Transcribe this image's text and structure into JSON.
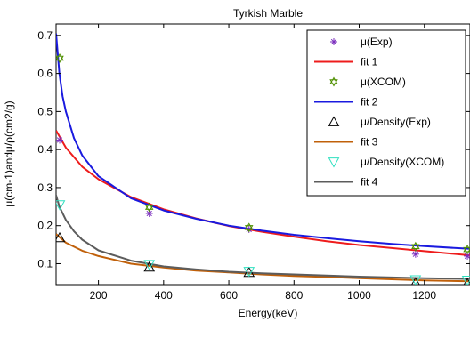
{
  "chart_data": {
    "type": "line",
    "title": "Tyrkish Marble",
    "xlabel": "Energy(keV)",
    "ylabel": "μ(cm-1)andμ/ρ(cm2/g)",
    "xlim": [
      70,
      1340
    ],
    "ylim": [
      0.045,
      0.73
    ],
    "xticks": [
      200,
      400,
      600,
      800,
      1000,
      1200
    ],
    "yticks": [
      0.1,
      0.2,
      0.3,
      0.4,
      0.5,
      0.6,
      0.7
    ],
    "ytick_labels": [
      "0.1",
      "0.2",
      "0.3",
      "0.4",
      "0.5",
      "0.6",
      "0.7"
    ],
    "grid": false,
    "legend_position": "top-right",
    "series": [
      {
        "name": "μ(Exp)",
        "kind": "marker",
        "marker": "asterisk",
        "color": "#7B2FBE",
        "points": [
          [
            81,
            0.425
          ],
          [
            356,
            0.232
          ],
          [
            662,
            0.19
          ],
          [
            1173,
            0.125
          ],
          [
            1332,
            0.12
          ]
        ]
      },
      {
        "name": "fit 1",
        "kind": "line",
        "color": "#ee1c1c",
        "points": [
          [
            70,
            0.45
          ],
          [
            100,
            0.405
          ],
          [
            150,
            0.355
          ],
          [
            200,
            0.322
          ],
          [
            300,
            0.275
          ],
          [
            400,
            0.243
          ],
          [
            500,
            0.219
          ],
          [
            600,
            0.199
          ],
          [
            700,
            0.184
          ],
          [
            800,
            0.171
          ],
          [
            900,
            0.159
          ],
          [
            1000,
            0.149
          ],
          [
            1100,
            0.141
          ],
          [
            1200,
            0.133
          ],
          [
            1340,
            0.122
          ]
        ]
      },
      {
        "name": "μ(XCOM)",
        "kind": "marker",
        "marker": "hexagram",
        "color": "#4f8f00",
        "points": [
          [
            81,
            0.64
          ],
          [
            356,
            0.248
          ],
          [
            662,
            0.195
          ],
          [
            1173,
            0.145
          ],
          [
            1332,
            0.137
          ]
        ]
      },
      {
        "name": "fit 2",
        "kind": "line",
        "color": "#1a1adf",
        "points": [
          [
            70,
            0.705
          ],
          [
            80,
            0.6
          ],
          [
            90,
            0.54
          ],
          [
            100,
            0.5
          ],
          [
            125,
            0.43
          ],
          [
            150,
            0.385
          ],
          [
            200,
            0.33
          ],
          [
            300,
            0.272
          ],
          [
            400,
            0.24
          ],
          [
            500,
            0.218
          ],
          [
            600,
            0.2
          ],
          [
            700,
            0.187
          ],
          [
            800,
            0.176
          ],
          [
            900,
            0.167
          ],
          [
            1000,
            0.159
          ],
          [
            1100,
            0.152
          ],
          [
            1200,
            0.146
          ],
          [
            1340,
            0.139
          ]
        ]
      },
      {
        "name": "μ/Density(Exp)",
        "kind": "marker",
        "marker": "triangle-up",
        "color": "#000000",
        "points": [
          [
            81,
            0.168
          ],
          [
            356,
            0.091
          ],
          [
            662,
            0.077
          ],
          [
            1173,
            0.05
          ],
          [
            1332,
            0.048
          ]
        ]
      },
      {
        "name": "fit 3",
        "kind": "line",
        "color": "#c0600a",
        "points": [
          [
            70,
            0.178
          ],
          [
            100,
            0.155
          ],
          [
            150,
            0.134
          ],
          [
            200,
            0.12
          ],
          [
            300,
            0.1
          ],
          [
            400,
            0.09
          ],
          [
            500,
            0.082
          ],
          [
            600,
            0.077
          ],
          [
            700,
            0.072
          ],
          [
            800,
            0.068
          ],
          [
            900,
            0.065
          ],
          [
            1000,
            0.062
          ],
          [
            1100,
            0.059
          ],
          [
            1200,
            0.056
          ],
          [
            1340,
            0.054
          ]
        ]
      },
      {
        "name": "μ/Density(XCOM)",
        "kind": "marker",
        "marker": "triangle-down",
        "color": "#30e0c0",
        "points": [
          [
            81,
            0.255
          ],
          [
            356,
            0.098
          ],
          [
            662,
            0.08
          ],
          [
            1173,
            0.058
          ],
          [
            1332,
            0.057
          ]
        ]
      },
      {
        "name": "fit 4",
        "kind": "line",
        "color": "#5c5c5c",
        "points": [
          [
            70,
            0.28
          ],
          [
            80,
            0.25
          ],
          [
            100,
            0.215
          ],
          [
            125,
            0.185
          ],
          [
            150,
            0.163
          ],
          [
            200,
            0.135
          ],
          [
            300,
            0.108
          ],
          [
            400,
            0.093
          ],
          [
            500,
            0.085
          ],
          [
            600,
            0.079
          ],
          [
            700,
            0.075
          ],
          [
            800,
            0.072
          ],
          [
            900,
            0.069
          ],
          [
            1000,
            0.066
          ],
          [
            1100,
            0.064
          ],
          [
            1200,
            0.062
          ],
          [
            1340,
            0.06
          ]
        ]
      }
    ]
  }
}
